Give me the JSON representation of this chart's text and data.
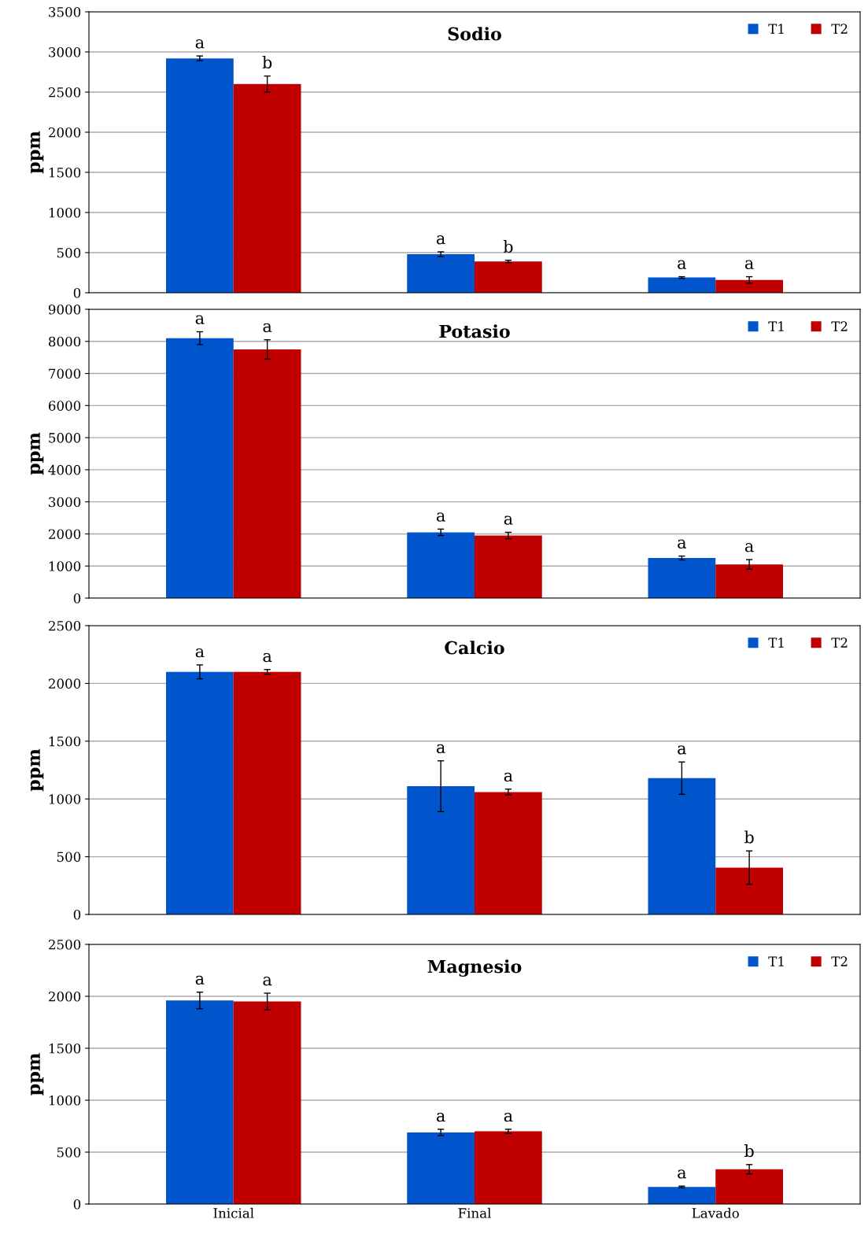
{
  "chart_data": [
    {
      "type": "bar",
      "title": "Sodio",
      "ylabel": "ppm",
      "categories": [
        null,
        null,
        null
      ],
      "tick_labels": "y",
      "ylim": [
        0,
        3500
      ],
      "yticks": [
        0,
        500,
        1000,
        1500,
        2000,
        2500,
        3000,
        3500
      ],
      "grid": "y",
      "legend": "top right",
      "series": [
        {
          "name": "T1",
          "color": "#0055cc",
          "values": [
            2920,
            480,
            190
          ],
          "errors": [
            30,
            30,
            10
          ],
          "value_labels": [
            "a",
            "a",
            "a"
          ]
        },
        {
          "name": "T2",
          "color": "#c00000",
          "values": [
            2600,
            390,
            160
          ],
          "errors": [
            100,
            15,
            40
          ],
          "value_labels": [
            "b",
            "b",
            "a"
          ]
        }
      ]
    },
    {
      "type": "bar",
      "title": "Potasio",
      "ylabel": "ppm",
      "categories": [
        null,
        null,
        null
      ],
      "tick_labels": "y",
      "ylim": [
        0,
        9000
      ],
      "yticks": [
        0,
        1000,
        2000,
        3000,
        4000,
        5000,
        6000,
        7000,
        8000,
        9000
      ],
      "grid": "y",
      "legend": "top right",
      "series": [
        {
          "name": "T1",
          "color": "#0055cc",
          "values": [
            8100,
            2050,
            1250
          ],
          "errors": [
            200,
            100,
            60
          ],
          "value_labels": [
            "a",
            "a",
            "a"
          ]
        },
        {
          "name": "T2",
          "color": "#c00000",
          "values": [
            7750,
            1950,
            1050
          ],
          "errors": [
            300,
            100,
            150
          ],
          "value_labels": [
            "a",
            "a",
            "a"
          ]
        }
      ]
    },
    {
      "type": "bar",
      "title": "Calcio",
      "ylabel": "ppm",
      "categories": [
        null,
        null,
        null
      ],
      "tick_labels": "y",
      "ylim": [
        0,
        2500
      ],
      "yticks": [
        0,
        500,
        1000,
        1500,
        2000,
        2500
      ],
      "grid": "y",
      "legend": "top right",
      "series": [
        {
          "name": "T1",
          "color": "#0055cc",
          "values": [
            2100,
            1110,
            1180
          ],
          "errors": [
            60,
            220,
            140
          ],
          "value_labels": [
            "a",
            "a",
            "a"
          ]
        },
        {
          "name": "T2",
          "color": "#c00000",
          "values": [
            2100,
            1060,
            405
          ],
          "errors": [
            20,
            25,
            145
          ],
          "value_labels": [
            "a",
            "a",
            "b"
          ]
        }
      ]
    },
    {
      "type": "bar",
      "title": "Magnesio",
      "ylabel": "ppm",
      "categories": [
        "Inicial",
        "Final",
        "Lavado"
      ],
      "ylim": [
        0,
        2500
      ],
      "yticks": [
        0,
        500,
        1000,
        1500,
        2000,
        2500
      ],
      "grid": "y",
      "legend": "top right",
      "series": [
        {
          "name": "T1",
          "color": "#0055cc",
          "values": [
            1960,
            690,
            165
          ],
          "errors": [
            80,
            30,
            8
          ],
          "value_labels": [
            "a",
            "a",
            "a"
          ]
        },
        {
          "name": "T2",
          "color": "#c00000",
          "values": [
            1950,
            700,
            335
          ],
          "errors": [
            80,
            20,
            45
          ],
          "value_labels": [
            "a",
            "a",
            "b"
          ]
        }
      ]
    }
  ]
}
